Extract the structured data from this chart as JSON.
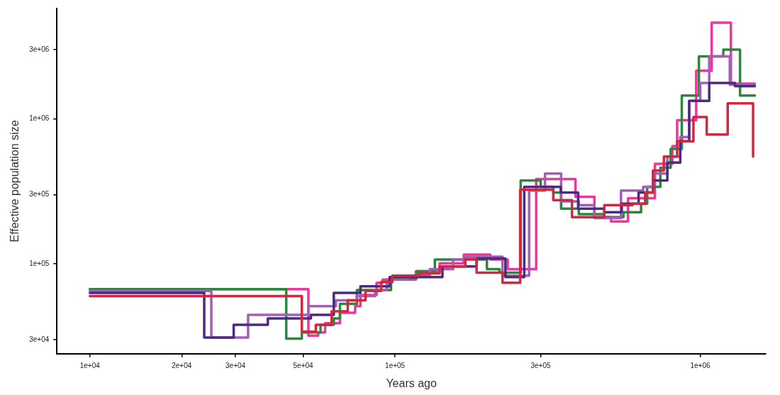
{
  "chart_data": {
    "type": "step",
    "xlabel": "Years ago",
    "ylabel": "Effective population size",
    "log": "xy",
    "grid": false,
    "legend": false,
    "marker": "none",
    "line_style": "solid",
    "xlim": [
      7800,
      1640000
    ],
    "ylim": [
      24000,
      5770000
    ],
    "xticks": [
      {
        "value": 10000,
        "label": "1e+04"
      },
      {
        "value": 20000,
        "label": "2e+04"
      },
      {
        "value": 30000,
        "label": "3e+04"
      },
      {
        "value": 50000,
        "label": "5e+04"
      },
      {
        "value": 100000,
        "label": "1e+05"
      },
      {
        "value": 300000,
        "label": "3e+05"
      },
      {
        "value": 1000000,
        "label": "1e+06"
      }
    ],
    "yticks": [
      {
        "value": 30000,
        "label": "3e+04"
      },
      {
        "value": 100000,
        "label": "1e+05"
      },
      {
        "value": 300000,
        "label": "3e+05"
      },
      {
        "value": 1000000,
        "label": "1e+06"
      },
      {
        "value": 3000000,
        "label": "3e+06"
      }
    ],
    "series": [
      {
        "color": "#d0283e",
        "x": [
          10000,
          49500,
          55000,
          62000,
          70000,
          80000,
          90000,
          98000,
          120000,
          140000,
          170000,
          185000,
          225000,
          257000,
          330000,
          380000,
          485000,
          600000,
          660000,
          700000,
          760000,
          840000,
          950000,
          1050000,
          1230000,
          1490000
        ],
        "values": [
          60000,
          34000,
          38000,
          47000,
          56000,
          65000,
          75000,
          83000,
          86000,
          96000,
          108000,
          87000,
          74000,
          325000,
          275000,
          210000,
          254000,
          260000,
          310000,
          440000,
          550000,
          700000,
          1030000,
          780000,
          1280000,
          550000
        ]
      },
      {
        "color": "#4b2a7f",
        "x": [
          10000,
          23700,
          29600,
          38300,
          53000,
          63000,
          77000,
          96000,
          143000,
          185000,
          230000,
          265000,
          349000,
          398000,
          485000,
          553000,
          628000,
          700000,
          780000,
          860000,
          920000,
          1070000,
          1300000,
          1510000
        ],
        "values": [
          63000,
          31000,
          38000,
          42000,
          44500,
          63000,
          70000,
          81000,
          96000,
          109000,
          81000,
          340000,
          310000,
          240000,
          227000,
          260000,
          310000,
          376000,
          500000,
          700000,
          1330000,
          1770000,
          1680000,
          1680000
        ]
      },
      {
        "color": "#a45fb4",
        "x": [
          10000,
          25000,
          33000,
          52000,
          64000,
          75000,
          86000,
          94000,
          110000,
          130000,
          155000,
          170000,
          225000,
          275000,
          310000,
          350000,
          400000,
          450000,
          550000,
          650000,
          700000,
          780000,
          860000,
          920000,
          1000000,
          1070000,
          1250000,
          1510000
        ],
        "values": [
          65000,
          31000,
          44500,
          51000,
          56000,
          60000,
          66000,
          78000,
          83000,
          92000,
          107000,
          112000,
          83000,
          320000,
          420000,
          270000,
          254000,
          207000,
          320000,
          340000,
          420000,
          550000,
          750000,
          1330000,
          1770000,
          2700000,
          1720000,
          1720000
        ]
      },
      {
        "color": "#2e8540",
        "x": [
          10000,
          44000,
          49500,
          57000,
          63000,
          66000,
          75000,
          97000,
          118000,
          135000,
          200000,
          220000,
          258000,
          300000,
          330000,
          350000,
          400000,
          485000,
          560000,
          640000,
          670000,
          740000,
          800000,
          870000,
          990000,
          1190000,
          1350000,
          1510000
        ],
        "values": [
          67000,
          30500,
          33700,
          38000,
          42000,
          53000,
          66000,
          80000,
          89000,
          107000,
          92000,
          87000,
          376000,
          340000,
          310000,
          240000,
          220000,
          210000,
          227000,
          260000,
          340000,
          460000,
          620000,
          1450000,
          2700000,
          3000000,
          1450000,
          1450000
        ]
      },
      {
        "color": "#f0359b",
        "x": [
          10000,
          52000,
          56000,
          59000,
          66000,
          74000,
          77000,
          87000,
          91000,
          117000,
          140000,
          168000,
          205000,
          234000,
          290000,
          390000,
          450000,
          510000,
          580000,
          710000,
          810000,
          840000,
          970000,
          1090000,
          1260000,
          1510000
        ],
        "values": [
          67000,
          32000,
          33700,
          39000,
          46000,
          51000,
          61000,
          74000,
          78000,
          89000,
          101000,
          116000,
          107000,
          92000,
          384000,
          290000,
          210000,
          196000,
          284000,
          490000,
          650000,
          980000,
          2150000,
          4600000,
          1750000,
          1750000
        ]
      }
    ]
  }
}
